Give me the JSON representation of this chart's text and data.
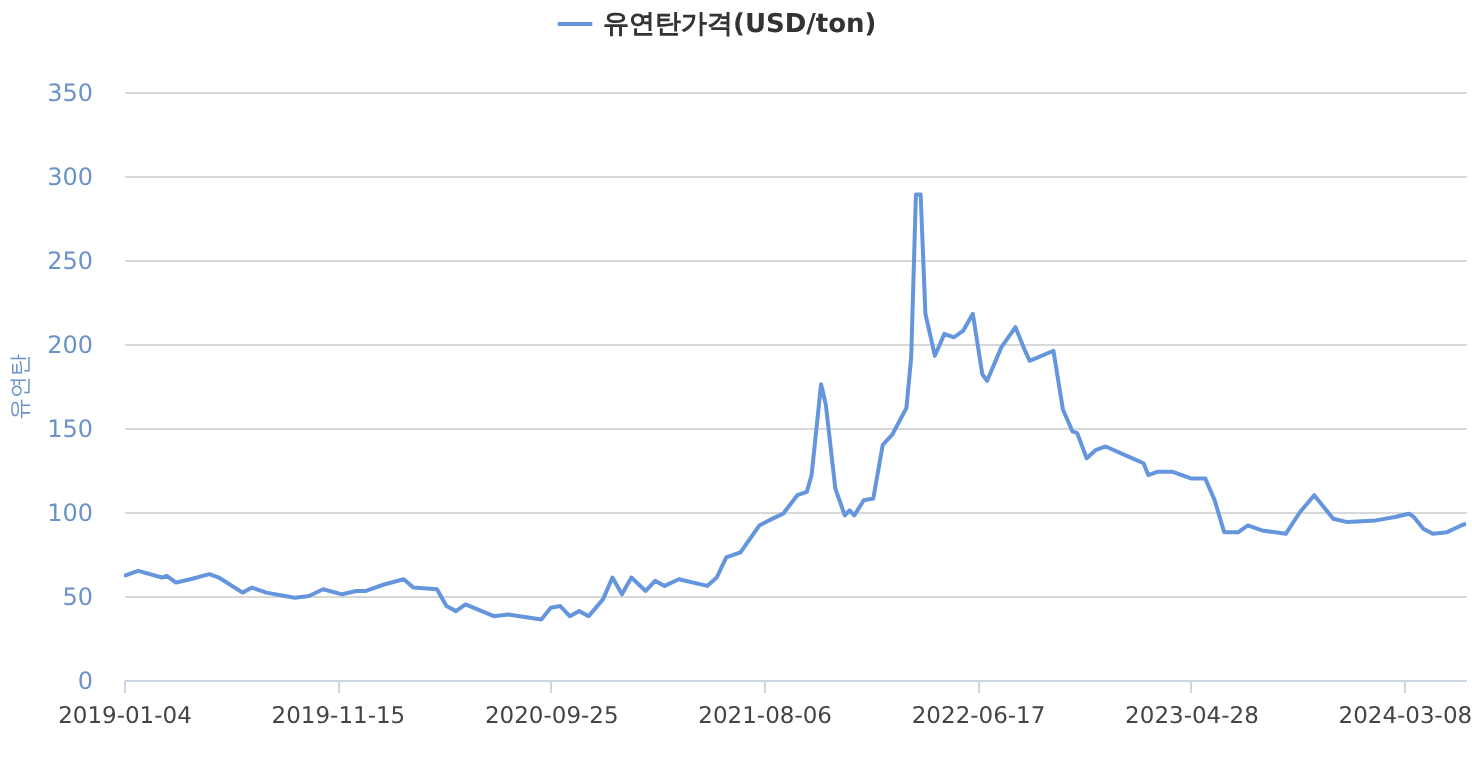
{
  "chart_data": {
    "type": "line",
    "ylabel": "유연탄",
    "legend": "top",
    "grid": "y",
    "marker": "none",
    "line_style": "solid",
    "xlim": [
      "2019-01-04",
      "2024-06-07"
    ],
    "xticks": [
      "2019-01-04",
      "2019-11-15",
      "2020-09-25",
      "2021-08-06",
      "2022-06-17",
      "2023-04-28",
      "2024-03-08"
    ],
    "ylim": [
      0,
      350
    ],
    "yticks": [
      0,
      50,
      100,
      150,
      200,
      250,
      300,
      350
    ],
    "x": [
      "2019-01-04",
      "2019-01-25",
      "2019-03-01",
      "2019-03-08",
      "2019-03-22",
      "2019-04-12",
      "2019-05-10",
      "2019-05-24",
      "2019-06-28",
      "2019-07-12",
      "2019-08-02",
      "2019-09-13",
      "2019-10-04",
      "2019-10-25",
      "2019-11-22",
      "2019-12-13",
      "2019-12-27",
      "2020-01-24",
      "2020-02-21",
      "2020-03-06",
      "2020-04-10",
      "2020-04-24",
      "2020-05-08",
      "2020-05-22",
      "2020-07-03",
      "2020-07-24",
      "2020-09-11",
      "2020-09-25",
      "2020-10-09",
      "2020-10-23",
      "2020-11-06",
      "2020-11-20",
      "2020-12-11",
      "2020-12-25",
      "2021-01-08",
      "2021-01-22",
      "2021-02-12",
      "2021-02-26",
      "2021-03-12",
      "2021-04-02",
      "2021-05-14",
      "2021-05-28",
      "2021-06-11",
      "2021-07-02",
      "2021-07-30",
      "2021-08-13",
      "2021-09-03",
      "2021-09-24",
      "2021-10-08",
      "2021-10-15",
      "2021-10-29",
      "2021-11-05",
      "2021-11-19",
      "2021-12-03",
      "2021-12-10",
      "2021-12-17",
      "2021-12-31",
      "2022-01-14",
      "2022-01-28",
      "2022-02-11",
      "2022-03-04",
      "2022-03-11",
      "2022-03-18",
      "2022-03-25",
      "2022-04-01",
      "2022-04-15",
      "2022-04-29",
      "2022-05-13",
      "2022-05-27",
      "2022-06-10",
      "2022-06-24",
      "2022-07-01",
      "2022-07-22",
      "2022-08-12",
      "2022-08-26",
      "2022-09-02",
      "2022-10-07",
      "2022-10-21",
      "2022-11-04",
      "2022-11-11",
      "2022-11-25",
      "2022-12-09",
      "2022-12-23",
      "2023-01-20",
      "2023-02-17",
      "2023-02-24",
      "2023-03-10",
      "2023-03-31",
      "2023-04-28",
      "2023-05-19",
      "2023-06-02",
      "2023-06-16",
      "2023-07-07",
      "2023-07-21",
      "2023-08-11",
      "2023-09-15",
      "2023-10-06",
      "2023-10-27",
      "2023-11-24",
      "2023-12-15",
      "2024-01-26",
      "2024-02-23",
      "2024-03-15",
      "2024-03-22",
      "2024-04-05",
      "2024-04-19",
      "2024-05-10",
      "2024-05-31",
      "2024-06-07"
    ],
    "series": [
      {
        "name": "유연탄가격(USD/ton)",
        "color": "#6495dd",
        "values": [
          62,
          65,
          61,
          62,
          58,
          60,
          63,
          61,
          52,
          55,
          52,
          49,
          50,
          54,
          51,
          53,
          53,
          57,
          60,
          55,
          54,
          44,
          41,
          45,
          38,
          39,
          36,
          43,
          44,
          38,
          41,
          38,
          48,
          61,
          51,
          61,
          53,
          59,
          56,
          60,
          56,
          61,
          73,
          76,
          92,
          95,
          99,
          110,
          112,
          122,
          176,
          164,
          114,
          98,
          101,
          98,
          107,
          108,
          140,
          146,
          162,
          192,
          289,
          289,
          218,
          193,
          206,
          204,
          208,
          218,
          182,
          178,
          198,
          210,
          196,
          190,
          196,
          161,
          148,
          147,
          132,
          137,
          139,
          134,
          129,
          122,
          124,
          124,
          120,
          120,
          107,
          88,
          88,
          92,
          89,
          87,
          100,
          110,
          96,
          94,
          95,
          97,
          99,
          97,
          90,
          87,
          88,
          92,
          93
        ]
      }
    ]
  }
}
